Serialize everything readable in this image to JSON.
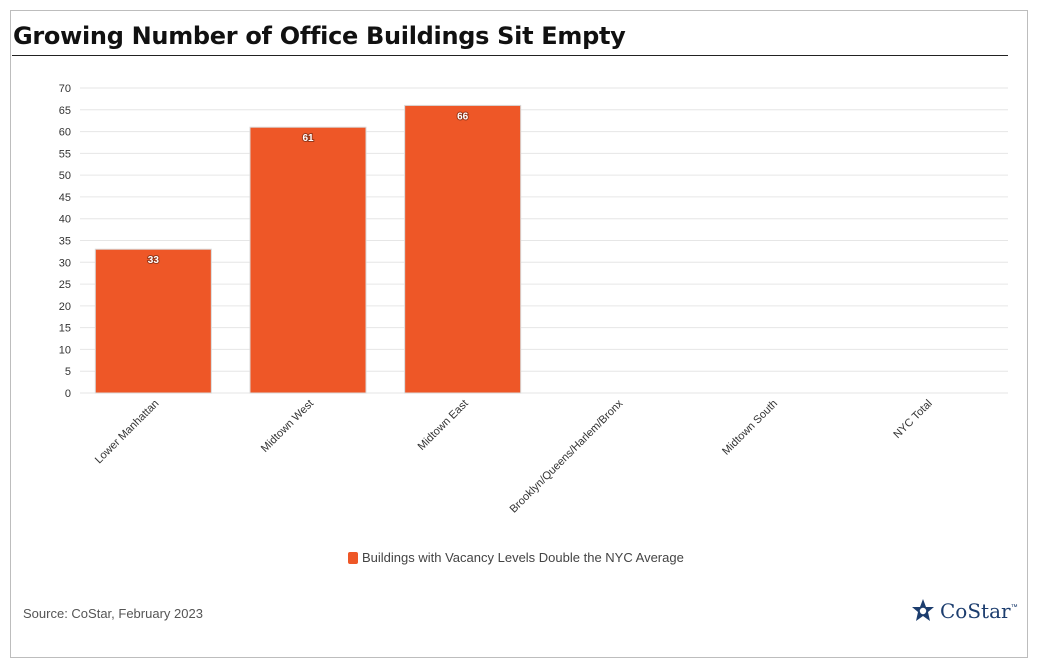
{
  "title": "Growing Number of Office Buildings Sit Empty",
  "source": "Source: CoStar, February 2023",
  "logo": {
    "text": "CoStar",
    "tm": "™"
  },
  "colors": {
    "bar": "#ee5727",
    "bar_stroke": "#d9d9d9",
    "grid": "#e6e6e6",
    "axis_text": "#333333"
  },
  "chart_data": {
    "type": "bar",
    "title": "Growing Number of Office Buildings Sit Empty",
    "categories": [
      "Lower Manhattan",
      "Midtown West",
      "Midtown East",
      "Brooklyn/Queens/Harlem/Bronx",
      "Midtown South",
      "NYC Total"
    ],
    "series": [
      {
        "name": "Buildings with Vacancy Levels Double the NYC Average",
        "values": [
          33,
          61,
          66,
          null,
          null,
          null
        ]
      }
    ],
    "ylim": [
      0,
      70
    ],
    "yticks": [
      0,
      5,
      10,
      15,
      20,
      25,
      30,
      35,
      40,
      45,
      50,
      55,
      60,
      65,
      70
    ],
    "grid": true,
    "legend": "bottom",
    "data_labels": true
  }
}
